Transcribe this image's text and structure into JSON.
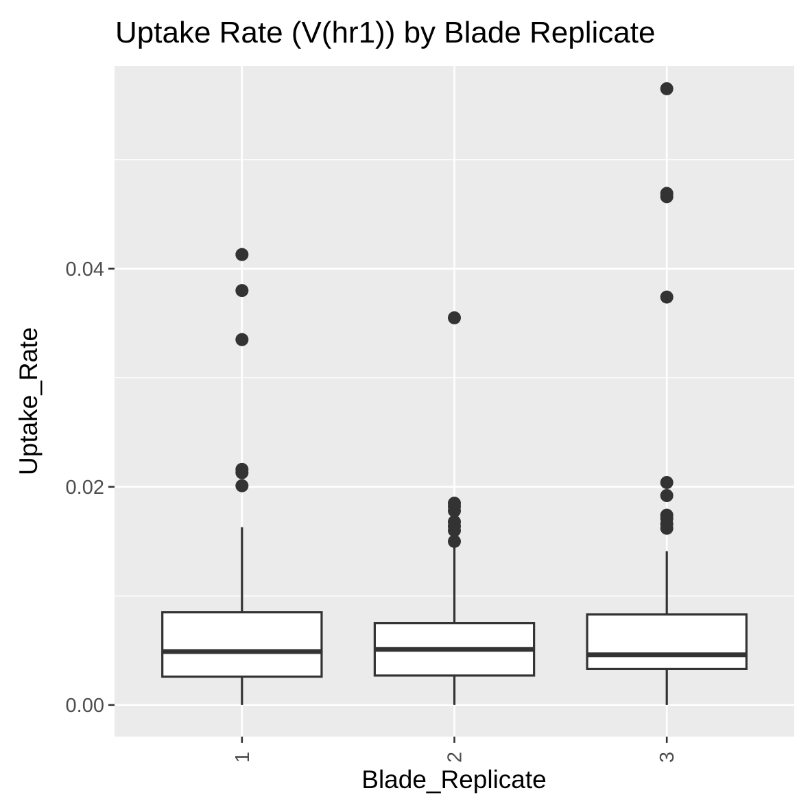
{
  "chart_data": {
    "type": "box",
    "title": "Uptake Rate (V(hr1)) by Blade Replicate",
    "xlabel": "Blade_Replicate",
    "ylabel": "Uptake_Rate",
    "categories": [
      "1",
      "2",
      "3"
    ],
    "ylim": [
      -0.0029,
      0.0586
    ],
    "yticks": [
      0.0,
      0.02,
      0.04
    ],
    "ytick_labels": [
      "0.00",
      "0.02",
      "0.04"
    ],
    "grid": true,
    "colors": {
      "panel": "#ebebeb",
      "grid": "#ffffff",
      "box_fill": "#ffffff",
      "box_line": "#333333",
      "point": "#333333",
      "tick_text": "#4d4d4d",
      "tick_mark": "#333333"
    },
    "boxes": [
      {
        "category": "1",
        "whisker_low": 0.0,
        "q1": 0.0026,
        "median": 0.0049,
        "q3": 0.0085,
        "whisker_high": 0.0163,
        "outliers": [
          0.0413,
          0.038,
          0.0335,
          0.0216,
          0.0213,
          0.0201
        ]
      },
      {
        "category": "2",
        "whisker_low": 0.0,
        "q1": 0.0027,
        "median": 0.0051,
        "q3": 0.0075,
        "whisker_high": 0.0147,
        "outliers": [
          0.0355,
          0.0185,
          0.0182,
          0.0178,
          0.0168,
          0.0164,
          0.016,
          0.015
        ]
      },
      {
        "category": "3",
        "whisker_low": 0.0,
        "q1": 0.0033,
        "median": 0.0046,
        "q3": 0.0083,
        "whisker_high": 0.0141,
        "outliers": [
          0.0565,
          0.0469,
          0.0466,
          0.0374,
          0.0204,
          0.0192,
          0.0174,
          0.0171,
          0.0166,
          0.0162
        ]
      }
    ]
  }
}
